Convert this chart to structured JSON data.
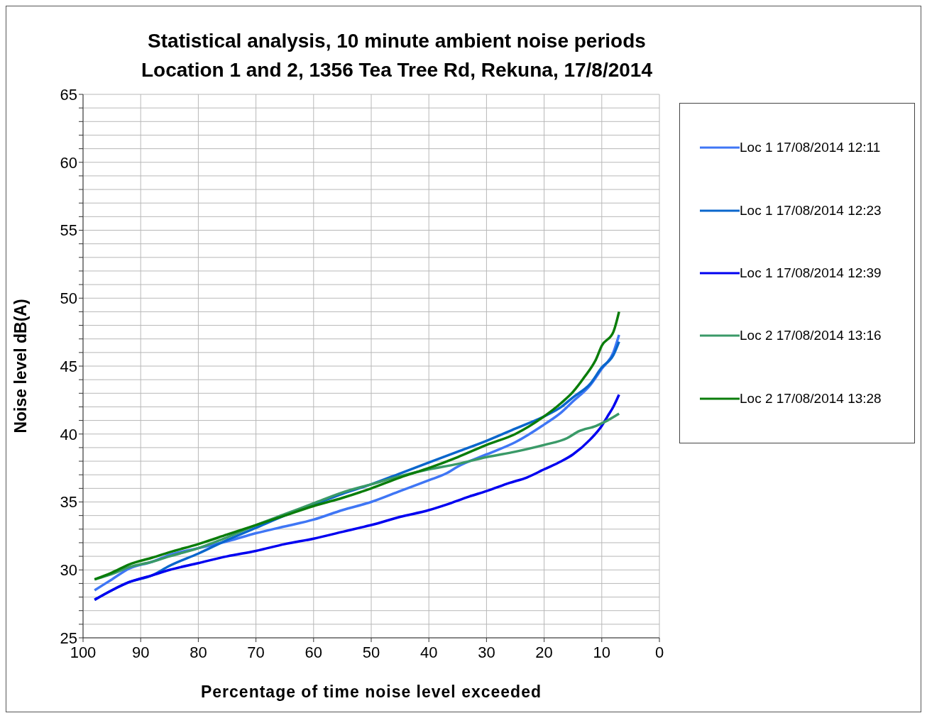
{
  "chart_data": {
    "type": "line",
    "title": "Statistical analysis, 10 minute ambient noise periods",
    "subtitle": "Location 1 and 2, 1356 Tea Tree Rd, Rekuna, 17/8/2014",
    "xlabel": "Percentage of time noise level exceeded",
    "ylabel": "Noise level dB(A)",
    "xlim": [
      100,
      0
    ],
    "xticks": [
      100,
      90,
      80,
      70,
      60,
      50,
      40,
      30,
      20,
      10,
      0
    ],
    "ylim": [
      25,
      65
    ],
    "yticks": [
      25,
      {
        "value": 26,
        "label": null
      },
      {
        "value": 27,
        "label": null
      },
      {
        "value": 28,
        "label": null
      },
      {
        "value": 29,
        "label": null
      },
      30,
      {
        "value": 31,
        "label": null
      },
      {
        "value": 32,
        "label": null
      },
      {
        "value": 33,
        "label": null
      },
      {
        "value": 34,
        "label": null
      },
      35,
      {
        "value": 36,
        "label": null
      },
      {
        "value": 37,
        "label": null
      },
      {
        "value": 38,
        "label": null
      },
      {
        "value": 39,
        "label": null
      },
      40,
      {
        "value": 41,
        "label": null
      },
      {
        "value": 42,
        "label": null
      },
      {
        "value": 43,
        "label": null
      },
      {
        "value": 44,
        "label": null
      },
      45,
      {
        "value": 46,
        "label": null
      },
      {
        "value": 47,
        "label": null
      },
      {
        "value": 48,
        "label": null
      },
      {
        "value": 49,
        "label": null
      },
      50,
      {
        "value": 51,
        "label": null
      },
      {
        "value": 52,
        "label": null
      },
      {
        "value": 53,
        "label": null
      },
      {
        "value": 54,
        "label": null
      },
      55,
      {
        "value": 56,
        "label": null
      },
      {
        "value": 57,
        "label": null
      },
      {
        "value": 58,
        "label": null
      },
      {
        "value": 59,
        "label": null
      },
      60,
      {
        "value": 61,
        "label": null
      },
      {
        "value": 62,
        "label": null
      },
      {
        "value": 63,
        "label": null
      },
      {
        "value": 64,
        "label": null
      },
      65
    ],
    "grid": true,
    "legend": "right",
    "marker": "none",
    "line_style": "solid",
    "series": [
      {
        "name": "Loc 1 17/08/2014 12:11",
        "color": "#3f76f5",
        "x": [
          98,
          95,
          92,
          88,
          85,
          80,
          75,
          70,
          65,
          60,
          55,
          50,
          45,
          40,
          37,
          35,
          30,
          25,
          20,
          17,
          15,
          12,
          10,
          8,
          7
        ],
        "values": [
          28.5,
          29.3,
          30.1,
          30.6,
          31.1,
          31.6,
          32.1,
          32.7,
          33.2,
          33.7,
          34.4,
          35.0,
          35.8,
          36.6,
          37.1,
          37.6,
          38.5,
          39.4,
          40.7,
          41.6,
          42.4,
          43.6,
          44.8,
          46.0,
          47.3
        ]
      },
      {
        "name": "Loc 1 17/08/2014 12:23",
        "color": "#0a66cc",
        "x": [
          98,
          95,
          92,
          88,
          85,
          80,
          75,
          70,
          65,
          60,
          55,
          50,
          45,
          40,
          35,
          30,
          25,
          20,
          17,
          15,
          12,
          10,
          8,
          7
        ],
        "values": [
          27.8,
          28.5,
          29.1,
          29.6,
          30.3,
          31.2,
          32.2,
          33.1,
          34.0,
          34.8,
          35.6,
          36.3,
          37.1,
          37.9,
          38.7,
          39.5,
          40.4,
          41.3,
          42.0,
          42.7,
          43.7,
          44.9,
          45.8,
          46.8
        ]
      },
      {
        "name": "Loc 1 17/08/2014 12:39",
        "color": "#0000f0",
        "x": [
          98,
          95,
          92,
          88,
          85,
          80,
          75,
          70,
          65,
          60,
          55,
          52,
          50,
          45,
          40,
          37,
          33,
          30,
          26,
          23,
          20,
          17,
          15,
          12,
          10,
          9,
          8,
          7
        ],
        "values": [
          27.8,
          28.5,
          29.1,
          29.6,
          30.0,
          30.5,
          31.0,
          31.4,
          31.9,
          32.3,
          32.8,
          33.1,
          33.3,
          33.9,
          34.4,
          34.8,
          35.4,
          35.8,
          36.4,
          36.8,
          37.4,
          38.0,
          38.5,
          39.6,
          40.6,
          41.3,
          42.0,
          42.9
        ]
      },
      {
        "name": "Loc 2 17/08/2014 13:16",
        "color": "#3a9a68",
        "x": [
          98,
          95,
          92,
          88,
          85,
          80,
          75,
          70,
          65,
          60,
          55,
          50,
          45,
          40,
          35,
          30,
          25,
          20,
          16,
          14,
          11,
          9,
          7
        ],
        "values": [
          29.3,
          29.7,
          30.2,
          30.6,
          31.0,
          31.6,
          32.4,
          33.3,
          34.1,
          34.9,
          35.7,
          36.3,
          36.9,
          37.4,
          37.8,
          38.3,
          38.7,
          39.2,
          39.7,
          40.2,
          40.6,
          41.0,
          41.5
        ]
      },
      {
        "name": "Loc 2 17/08/2014 13:28",
        "color": "#0a7d0a",
        "x": [
          98,
          95,
          92,
          88,
          85,
          80,
          75,
          70,
          65,
          60,
          55,
          50,
          45,
          40,
          35,
          30,
          25,
          20,
          17,
          15,
          13,
          11,
          10,
          8,
          7
        ],
        "values": [
          29.3,
          29.8,
          30.4,
          30.9,
          31.3,
          31.9,
          32.6,
          33.3,
          34.0,
          34.7,
          35.3,
          36.0,
          36.8,
          37.5,
          38.3,
          39.2,
          40.0,
          41.3,
          42.3,
          43.1,
          44.2,
          45.5,
          46.5,
          47.5,
          49.0
        ]
      }
    ]
  }
}
